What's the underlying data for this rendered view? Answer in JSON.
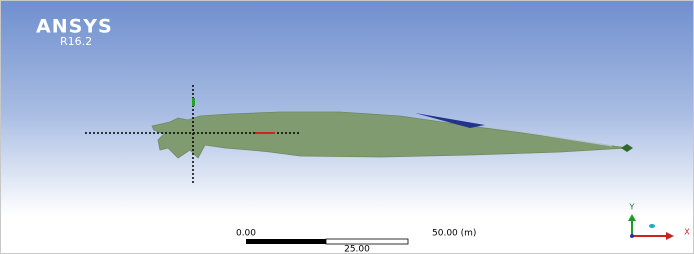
{
  "logo": {
    "name": "ANSYS",
    "version": "R16.2"
  },
  "scale_bar": {
    "start": "0.00",
    "end": "50.00 (m)",
    "middle": "25.00"
  },
  "triad": {
    "y": "Y",
    "x": "X"
  }
}
